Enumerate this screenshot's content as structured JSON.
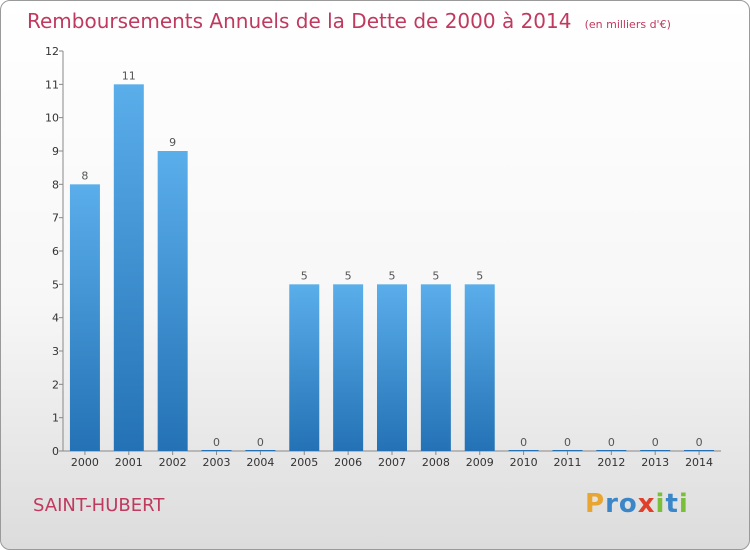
{
  "header": {
    "title": "Remboursements Annuels de la Dette de 2000 à 2014",
    "unit": "(en milliers d'€)"
  },
  "footer": {
    "place": "SAINT-HUBERT",
    "logo_text": "Proxiti"
  },
  "colors": {
    "title": "#c0395f",
    "bar_top": "#5aaeea",
    "bar_bottom": "#2472b5",
    "logo_letters": [
      "#e8a530",
      "#3a86c8",
      "#3a86c8",
      "#e0402a",
      "#7abf3a",
      "#3a86c8",
      "#7abf3a"
    ]
  },
  "chart_data": {
    "type": "bar",
    "categories": [
      "2000",
      "2001",
      "2002",
      "2003",
      "2004",
      "2005",
      "2006",
      "2007",
      "2008",
      "2009",
      "2010",
      "2011",
      "2012",
      "2013",
      "2014"
    ],
    "values": [
      8,
      11,
      9,
      0,
      0,
      5,
      5,
      5,
      5,
      5,
      0,
      0,
      0,
      0,
      0
    ],
    "title": "Remboursements Annuels de la Dette de 2000 à 2014",
    "xlabel": "",
    "ylabel": "",
    "ylim": [
      0,
      12
    ],
    "yticks": [
      0,
      1,
      2,
      3,
      4,
      5,
      6,
      7,
      8,
      9,
      10,
      11,
      12
    ],
    "grid": false,
    "legend": "none"
  }
}
